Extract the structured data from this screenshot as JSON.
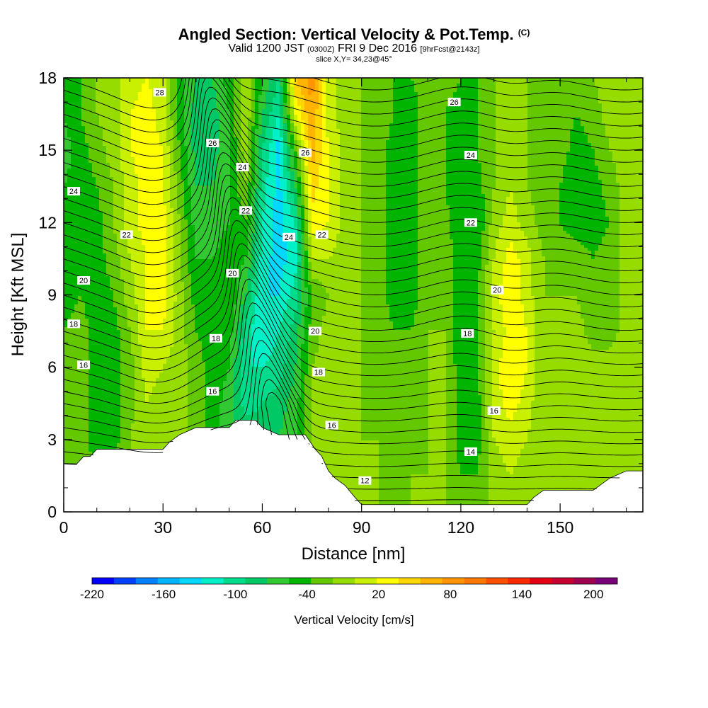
{
  "header": {
    "title": "Angled Section: Vertical Velocity & Pot.Temp.",
    "title_unit": "(C)",
    "valid_main": "Valid 1200 JST",
    "valid_utc": "(0300Z)",
    "valid_date": "FRI 9 Dec 2016",
    "forecast": "[9hrFcst@2143z]",
    "slice": "slice X,Y= 34,23@45°"
  },
  "chart_data": {
    "type": "heatmap",
    "title": "Angled Section: Vertical Velocity & Pot.Temp.",
    "xlabel": "Distance [nm]",
    "ylabel": "Height [Kft MSL]",
    "xlim": [
      0,
      175
    ],
    "ylim": [
      0,
      18
    ],
    "x_ticks": [
      0,
      30,
      60,
      90,
      120,
      150
    ],
    "y_ticks": [
      0,
      3,
      6,
      9,
      12,
      15,
      18
    ],
    "colorbar": {
      "label": "Vertical Velocity [cm/s]",
      "tick_values": [
        -220,
        -160,
        -100,
        -40,
        20,
        80,
        140,
        200
      ],
      "range": [
        -220,
        220
      ],
      "step": 20,
      "colors": [
        "#0000ff",
        "#0040ff",
        "#0080ff",
        "#00b4ff",
        "#00d8ff",
        "#00f0c8",
        "#00dc8c",
        "#00c864",
        "#32c832",
        "#00b400",
        "#64c800",
        "#96dc00",
        "#c8f000",
        "#ffff00",
        "#ffd700",
        "#ffb400",
        "#ff9600",
        "#ff7800",
        "#ff5000",
        "#ff2800",
        "#e60014",
        "#c80032",
        "#a00050",
        "#780078"
      ]
    },
    "velocity_field_cm_s": {
      "x": [
        0,
        5,
        10,
        15,
        20,
        25,
        30,
        35,
        40,
        45,
        50,
        55,
        60,
        65,
        70,
        75,
        80,
        85,
        90,
        95,
        100,
        105,
        110,
        115,
        120,
        125,
        130,
        135,
        140,
        145,
        150,
        155,
        160,
        165,
        170,
        175
      ],
      "y": [
        0,
        1.5,
        3,
        4.5,
        6,
        7.5,
        9,
        10.5,
        12,
        13.5,
        15,
        16.5,
        18
      ],
      "values": [
        [
          -10,
          -10,
          -20,
          -10,
          0,
          10,
          10,
          10,
          -10,
          -20,
          -20,
          -40,
          -60,
          -40,
          -20,
          0,
          0,
          0,
          0,
          0,
          0,
          0,
          0,
          0,
          0,
          0,
          0,
          0,
          0,
          0,
          0,
          0,
          0,
          0,
          0,
          0
        ],
        [
          -10,
          -10,
          -20,
          -20,
          0,
          10,
          10,
          10,
          -10,
          -20,
          -40,
          -50,
          -60,
          -50,
          -30,
          0,
          10,
          10,
          0,
          0,
          -10,
          0,
          0,
          0,
          -20,
          -20,
          10,
          20,
          10,
          0,
          0,
          0,
          0,
          10,
          10,
          10
        ],
        [
          -10,
          -10,
          -30,
          -30,
          0,
          20,
          10,
          10,
          -10,
          -30,
          -50,
          -60,
          -70,
          -60,
          -40,
          0,
          10,
          10,
          0,
          0,
          -10,
          -20,
          0,
          0,
          -30,
          -30,
          20,
          30,
          20,
          0,
          0,
          10,
          10,
          10,
          10,
          10
        ],
        [
          -10,
          -10,
          -30,
          -30,
          -10,
          20,
          10,
          10,
          -10,
          -30,
          -50,
          -90,
          -80,
          -70,
          -50,
          0,
          10,
          10,
          0,
          -10,
          -20,
          -20,
          0,
          0,
          -30,
          -30,
          30,
          50,
          30,
          0,
          0,
          10,
          10,
          10,
          10,
          10
        ],
        [
          -10,
          -10,
          -30,
          -30,
          -10,
          30,
          20,
          10,
          -10,
          -30,
          -40,
          -100,
          -100,
          -90,
          -60,
          0,
          10,
          10,
          0,
          -10,
          -20,
          -20,
          0,
          0,
          -30,
          -20,
          30,
          60,
          40,
          0,
          0,
          10,
          10,
          10,
          10,
          10
        ],
        [
          -20,
          -10,
          -30,
          -30,
          0,
          40,
          40,
          10,
          -20,
          -30,
          -30,
          -90,
          -120,
          -100,
          -70,
          -10,
          10,
          10,
          0,
          -10,
          -20,
          -20,
          0,
          0,
          -40,
          -20,
          20,
          50,
          40,
          0,
          0,
          10,
          -10,
          -10,
          10,
          10
        ],
        [
          -30,
          -20,
          -30,
          -20,
          10,
          40,
          50,
          10,
          -30,
          -30,
          -20,
          -60,
          -120,
          -120,
          -90,
          -20,
          0,
          10,
          0,
          -10,
          -30,
          -30,
          -10,
          0,
          -40,
          -20,
          30,
          60,
          30,
          0,
          0,
          0,
          -20,
          -20,
          10,
          10
        ],
        [
          -30,
          -20,
          -30,
          -10,
          20,
          40,
          50,
          0,
          -40,
          -40,
          -30,
          -40,
          -110,
          -130,
          -110,
          20,
          20,
          10,
          0,
          -10,
          -30,
          -30,
          -10,
          0,
          -40,
          -30,
          20,
          50,
          30,
          0,
          -10,
          -10,
          -20,
          -10,
          10,
          10
        ],
        [
          -40,
          -30,
          -30,
          0,
          30,
          50,
          50,
          0,
          -50,
          -50,
          -40,
          -20,
          -100,
          -130,
          -100,
          50,
          40,
          10,
          0,
          -10,
          -30,
          -30,
          -10,
          -10,
          -40,
          -40,
          10,
          30,
          10,
          -10,
          -20,
          -30,
          -30,
          -20,
          10,
          10
        ],
        [
          -40,
          -30,
          -20,
          0,
          30,
          50,
          40,
          -10,
          -60,
          -60,
          -40,
          0,
          -90,
          -130,
          -60,
          70,
          40,
          10,
          0,
          -10,
          -30,
          -30,
          -10,
          -20,
          -40,
          -30,
          0,
          20,
          0,
          -10,
          -20,
          -40,
          -30,
          -10,
          10,
          20
        ],
        [
          -50,
          -30,
          -10,
          10,
          40,
          50,
          40,
          -20,
          -70,
          -70,
          -40,
          10,
          -80,
          -130,
          -20,
          90,
          40,
          10,
          0,
          -10,
          -30,
          -30,
          -10,
          -20,
          -30,
          -20,
          0,
          20,
          0,
          -10,
          -10,
          -30,
          -20,
          0,
          10,
          20
        ],
        [
          -40,
          -20,
          0,
          10,
          40,
          50,
          30,
          -30,
          -70,
          -70,
          -40,
          20,
          -60,
          -100,
          40,
          100,
          30,
          10,
          0,
          -10,
          -20,
          -30,
          -10,
          -20,
          -30,
          -20,
          0,
          10,
          0,
          -10,
          -10,
          -20,
          -10,
          10,
          10,
          20
        ],
        [
          -30,
          -20,
          0,
          10,
          30,
          40,
          30,
          -30,
          -60,
          -60,
          -30,
          20,
          -40,
          -80,
          80,
          110,
          30,
          10,
          0,
          -10,
          -20,
          -20,
          -10,
          -10,
          -20,
          -20,
          0,
          10,
          0,
          -10,
          -10,
          -10,
          0,
          10,
          10,
          20
        ]
      ]
    },
    "terrain_kft": {
      "x": [
        0,
        2,
        4,
        6,
        8,
        10,
        13,
        17,
        25,
        30,
        32,
        35,
        40,
        50,
        52,
        55,
        58,
        60,
        65,
        70,
        73,
        76,
        78,
        80,
        82,
        85,
        88,
        90,
        95,
        100,
        120,
        130,
        140,
        142,
        145,
        150,
        155,
        160,
        162,
        165,
        170,
        175
      ],
      "y": [
        2.0,
        2.0,
        2.0,
        2.3,
        2.3,
        2.6,
        2.6,
        2.6,
        2.6,
        2.6,
        2.9,
        3.2,
        3.5,
        3.5,
        3.8,
        3.8,
        3.8,
        3.5,
        3.2,
        3.2,
        3.2,
        2.6,
        2.3,
        1.7,
        1.4,
        1.1,
        0.6,
        0.3,
        0.3,
        0.3,
        0.3,
        0.3,
        0.3,
        0.6,
        0.9,
        0.9,
        0.9,
        0.9,
        1.1,
        1.4,
        1.7,
        1.7
      ]
    },
    "potential_temperature": {
      "unit": "C",
      "isotherms": [
        11,
        11.5,
        12,
        12.5,
        13,
        13.5,
        14,
        14.5,
        15,
        15.5,
        16,
        16.5,
        17,
        17.5,
        18,
        18.5,
        19,
        19.5,
        20,
        20.5,
        21,
        21.5,
        22,
        22.5,
        23,
        23.5,
        24,
        24.5,
        25,
        25.5,
        26,
        26.5,
        27,
        27.5,
        28,
        28.5,
        29
      ],
      "labels": [
        {
          "text": "28",
          "x": 29,
          "y": 17.4
        },
        {
          "text": "26",
          "x": 45,
          "y": 15.3
        },
        {
          "text": "24",
          "x": 54,
          "y": 14.3
        },
        {
          "text": "22",
          "x": 55,
          "y": 12.5
        },
        {
          "text": "20",
          "x": 51,
          "y": 9.9
        },
        {
          "text": "18",
          "x": 46,
          "y": 7.2
        },
        {
          "text": "16",
          "x": 45,
          "y": 5.0
        },
        {
          "text": "24",
          "x": 3,
          "y": 13.3
        },
        {
          "text": "22",
          "x": 19,
          "y": 11.5
        },
        {
          "text": "20",
          "x": 6,
          "y": 9.6
        },
        {
          "text": "18",
          "x": 3,
          "y": 7.8
        },
        {
          "text": "16",
          "x": 6,
          "y": 6.1
        },
        {
          "text": "26",
          "x": 73,
          "y": 14.9
        },
        {
          "text": "24",
          "x": 68,
          "y": 11.4
        },
        {
          "text": "22",
          "x": 78,
          "y": 11.5
        },
        {
          "text": "20",
          "x": 76,
          "y": 7.5
        },
        {
          "text": "18",
          "x": 77,
          "y": 5.8
        },
        {
          "text": "16",
          "x": 81,
          "y": 3.6
        },
        {
          "text": "12",
          "x": 91,
          "y": 1.3
        },
        {
          "text": "26",
          "x": 118,
          "y": 17.0
        },
        {
          "text": "24",
          "x": 123,
          "y": 14.8
        },
        {
          "text": "22",
          "x": 123,
          "y": 12.0
        },
        {
          "text": "20",
          "x": 131,
          "y": 9.2
        },
        {
          "text": "18",
          "x": 122,
          "y": 7.4
        },
        {
          "text": "16",
          "x": 130,
          "y": 4.2
        },
        {
          "text": "14",
          "x": 123,
          "y": 2.5
        }
      ]
    }
  }
}
